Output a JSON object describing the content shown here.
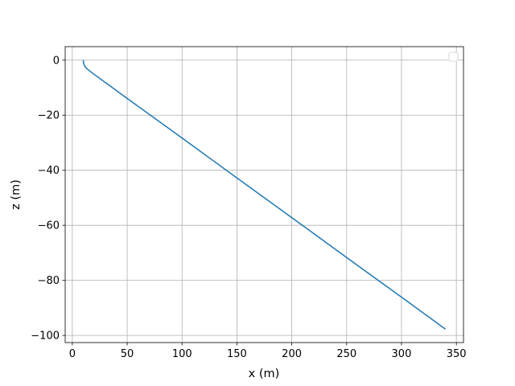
{
  "chart_data": {
    "type": "line",
    "xlabel": "x (m)",
    "ylabel": "z (m)",
    "x": [
      10,
      10.2,
      11,
      13,
      16,
      20,
      30,
      50,
      100,
      150,
      200,
      250,
      300,
      340
    ],
    "series": [
      {
        "color": "#1f77b4",
        "values": [
          0,
          -1,
          -2,
          -3,
          -4,
          -5.2,
          -8.1,
          -13.9,
          -28.3,
          -42.8,
          -57.2,
          -71.7,
          -86.1,
          -97.7
        ]
      }
    ],
    "xlim": [
      -6.5,
      356.5
    ],
    "xticks": [
      0,
      50,
      100,
      150,
      200,
      250,
      300,
      350
    ],
    "ylim": [
      -102.6,
      4.9
    ],
    "yticks": [
      {
        "value": -100,
        "label": "−100"
      },
      {
        "value": -80,
        "label": "−80"
      },
      {
        "value": -60,
        "label": "−60"
      },
      {
        "value": -40,
        "label": "−40"
      },
      {
        "value": -20,
        "label": "−20"
      },
      0
    ],
    "grid": true
  }
}
